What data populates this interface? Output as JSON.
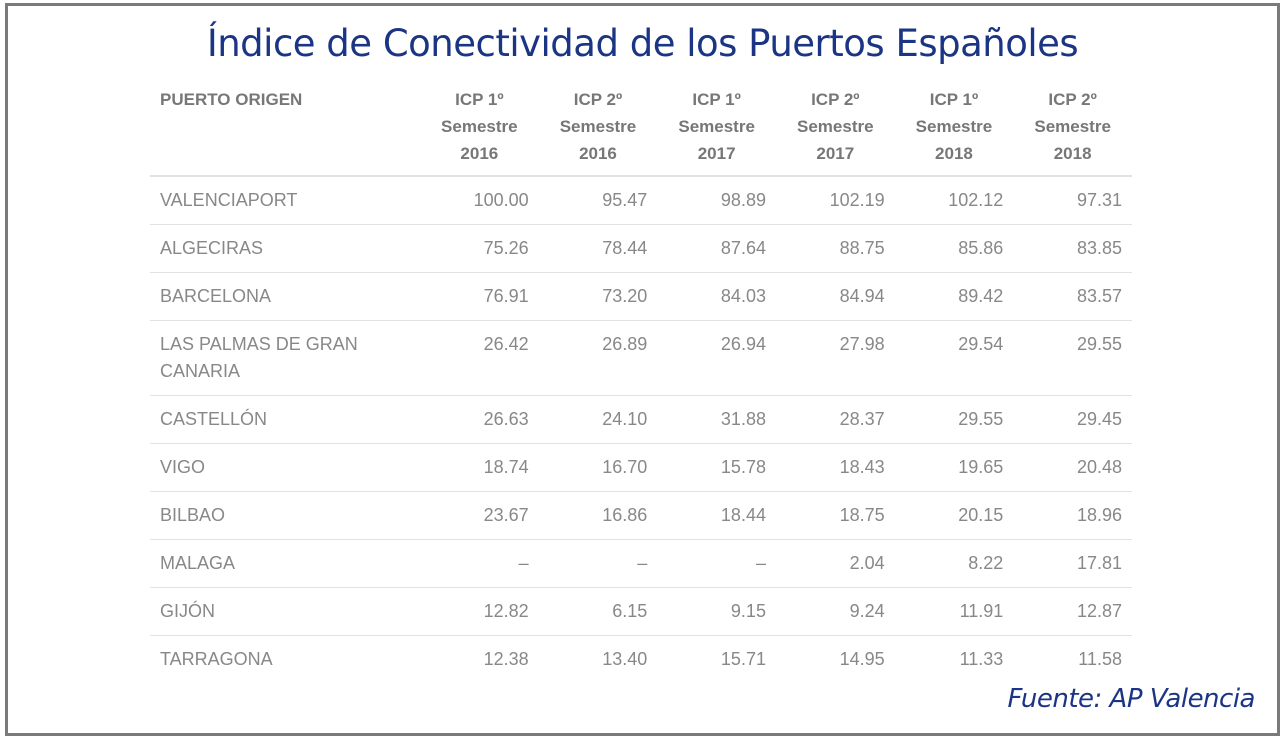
{
  "title": "Índice de Conectividad de los Puertos Españoles",
  "source": "Fuente: AP Valencia",
  "colors": {
    "title": "#1b3584",
    "text": "#888888",
    "border": "#7a7a7a"
  },
  "chart_data": {
    "type": "table",
    "title": "Índice de Conectividad de los Puertos Españoles",
    "columns": [
      [
        "PUERTO ORIGEN"
      ],
      [
        "ICP 1º",
        "Semestre",
        "2016"
      ],
      [
        "ICP 2º",
        "Semestre",
        "2016"
      ],
      [
        "ICP 1º",
        "Semestre",
        "2017"
      ],
      [
        "ICP 2º",
        "Semestre",
        "2017"
      ],
      [
        "ICP 1º",
        "Semestre",
        "2018"
      ],
      [
        "ICP 2º",
        "Semestre",
        "2018"
      ]
    ],
    "rows": [
      [
        "VALENCIAPORT",
        "100.00",
        "95.47",
        "98.89",
        "102.19",
        "102.12",
        "97.31"
      ],
      [
        "ALGECIRAS",
        "75.26",
        "78.44",
        "87.64",
        "88.75",
        "85.86",
        "83.85"
      ],
      [
        "BARCELONA",
        "76.91",
        "73.20",
        "84.03",
        "84.94",
        "89.42",
        "83.57"
      ],
      [
        "LAS PALMAS DE GRAN CANARIA",
        "26.42",
        "26.89",
        "26.94",
        "27.98",
        "29.54",
        "29.55"
      ],
      [
        "CASTELLÓN",
        "26.63",
        "24.10",
        "31.88",
        "28.37",
        "29.55",
        "29.45"
      ],
      [
        "VIGO",
        "18.74",
        "16.70",
        "15.78",
        "18.43",
        "19.65",
        "20.48"
      ],
      [
        "BILBAO",
        "23.67",
        "16.86",
        "18.44",
        "18.75",
        "20.15",
        "18.96"
      ],
      [
        "MALAGA",
        "–",
        "–",
        "–",
        "2.04",
        "8.22",
        "17.81"
      ],
      [
        "GIJÓN",
        "12.82",
        "6.15",
        "9.15",
        "9.24",
        "11.91",
        "12.87"
      ],
      [
        "TARRAGONA",
        "12.38",
        "13.40",
        "15.71",
        "14.95",
        "11.33",
        "11.58"
      ]
    ]
  }
}
